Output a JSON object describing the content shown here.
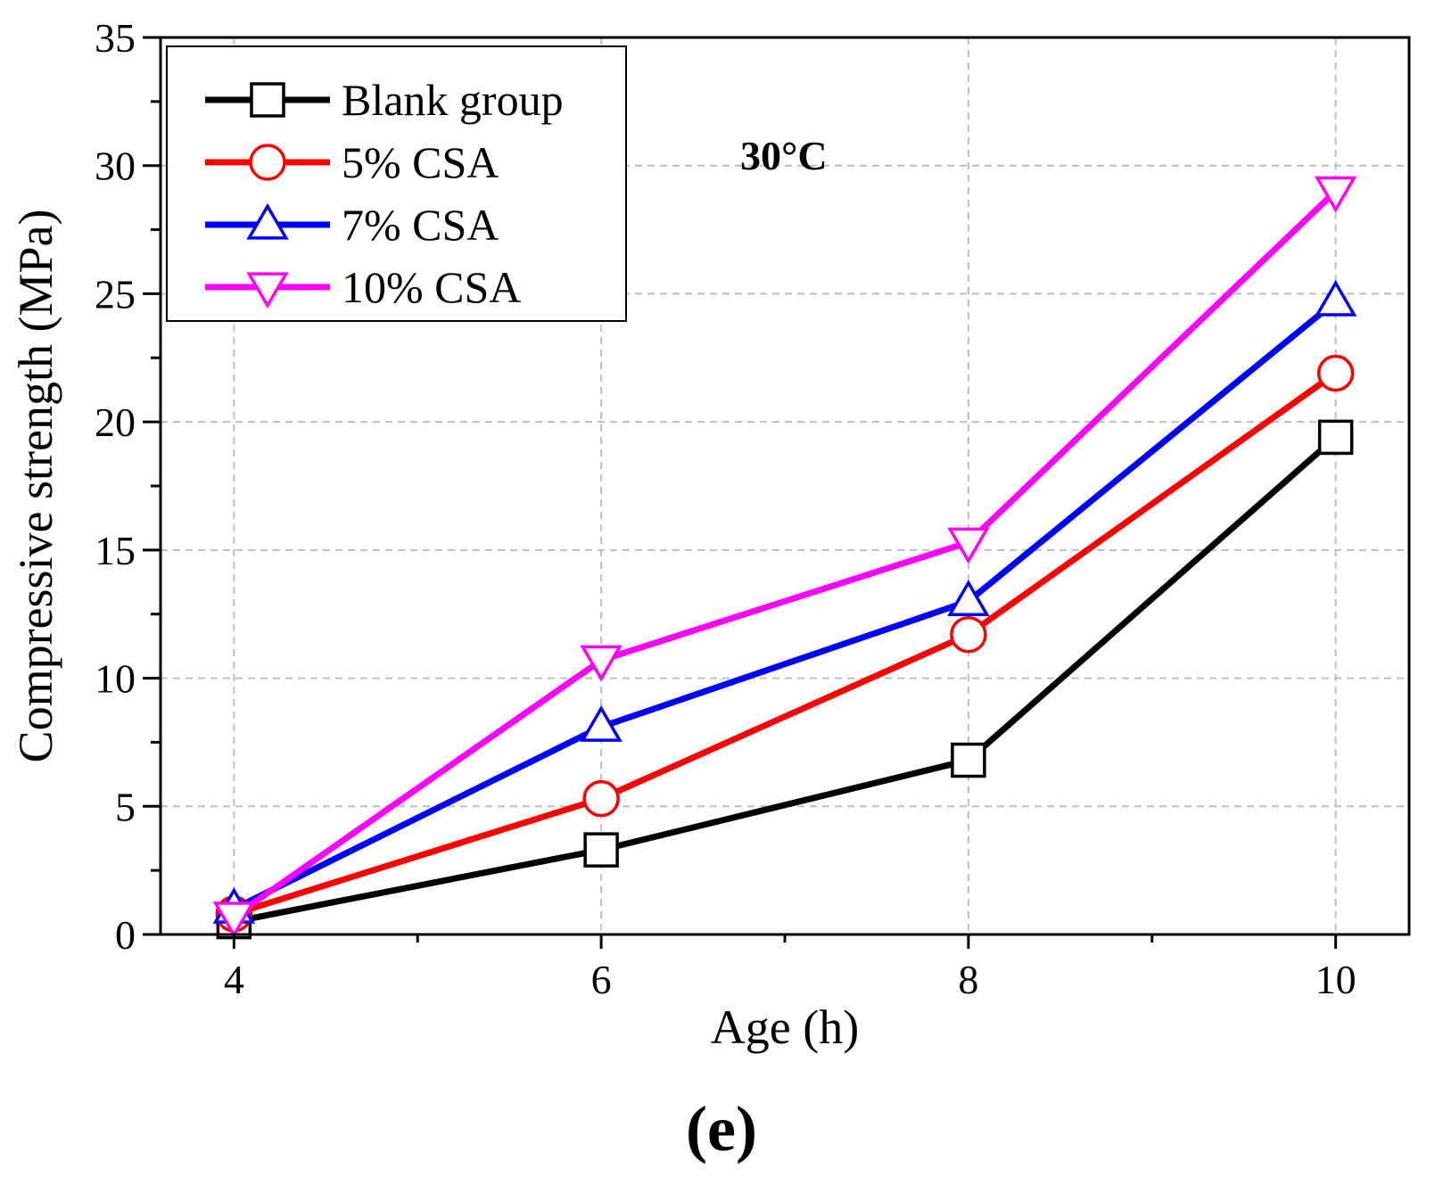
{
  "chart_data": {
    "type": "line",
    "title": "",
    "xlabel": "Age (h)",
    "ylabel": "Compressive strength (MPa)",
    "x": [
      4,
      6,
      8,
      10
    ],
    "xlim": [
      3.6,
      10.4
    ],
    "ylim": [
      0,
      35
    ],
    "xticks": [
      "4",
      "6",
      "8",
      "10"
    ],
    "yticks": [
      "0",
      "5",
      "10",
      "15",
      "20",
      "25",
      "30",
      "35"
    ],
    "grid": true,
    "legend_position": "top-left",
    "annotation": "30°C",
    "panel_label": "(e)",
    "series": [
      {
        "name": "Blank group",
        "color": "#000000",
        "marker": "square",
        "values": [
          0.5,
          3.3,
          6.8,
          19.4
        ]
      },
      {
        "name": "5% CSA",
        "color": "#ff0000",
        "marker": "circle",
        "values": [
          0.8,
          5.3,
          11.7,
          21.9
        ]
      },
      {
        "name": "7% CSA",
        "color": "#0000ff",
        "marker": "triangle-up",
        "values": [
          1.0,
          8.1,
          13.0,
          24.7
        ]
      },
      {
        "name": "10% CSA",
        "color": "#ff00ff",
        "marker": "triangle-down",
        "values": [
          0.7,
          10.7,
          15.3,
          29.0
        ]
      }
    ]
  }
}
